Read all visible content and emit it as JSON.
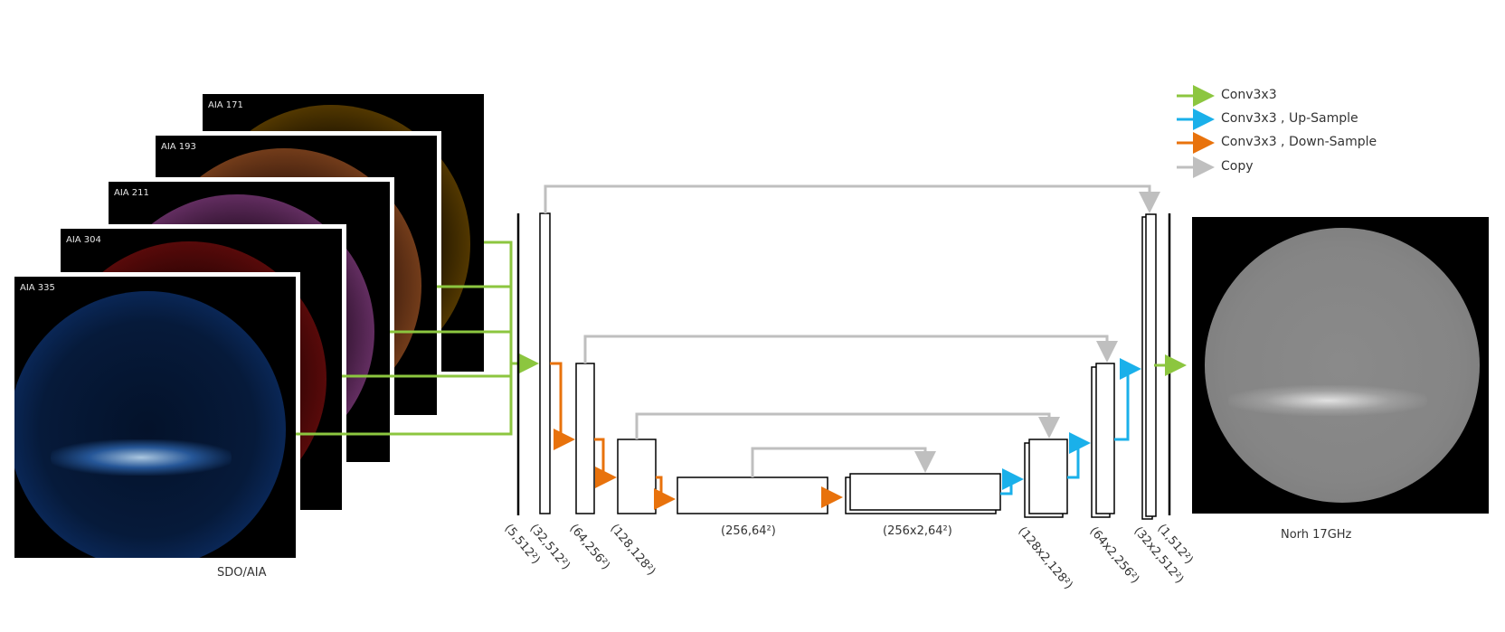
{
  "inputs": {
    "caption": "SDO/AIA",
    "channels": [
      {
        "label": "AIA 171",
        "color": "#e0a000"
      },
      {
        "label": "AIA 193",
        "color": "#c8642a"
      },
      {
        "label": "AIA 211",
        "color": "#b06ab0"
      },
      {
        "label": "AIA 304",
        "color": "#9a1010"
      },
      {
        "label": "AIA 335",
        "color": "#2a6fd0"
      }
    ]
  },
  "output": {
    "caption": "Norh 17GHz"
  },
  "layers": {
    "l1": "(5,512²)",
    "l2": "(32,512²)",
    "l3": "(64,256²)",
    "l4": "(128,128²)",
    "l5": "(256,64²)",
    "l6": "(256x2,64²)",
    "l7": "(128x2,128²)",
    "l8": "(64x2,256²)",
    "l9": "(32x2,512²)",
    "l10": "(1,512²)"
  },
  "legend": {
    "items": [
      {
        "label": "Conv3x3",
        "color": "#8cc63f"
      },
      {
        "label": "Conv3x3 , Up-Sample",
        "color": "#1ab0ea"
      },
      {
        "label": "Conv3x3 , Down-Sample",
        "color": "#e8720c"
      },
      {
        "label": "Copy",
        "color": "#bfbfbf"
      }
    ]
  }
}
